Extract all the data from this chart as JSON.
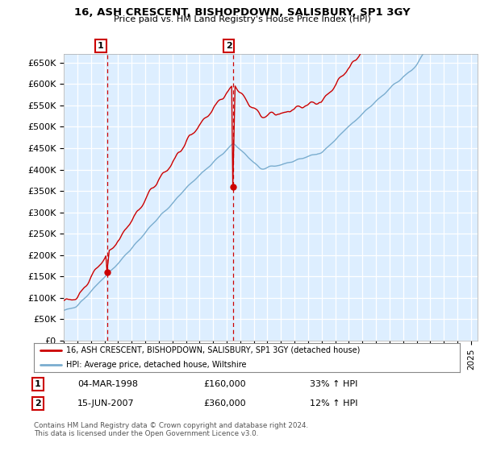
{
  "title": "16, ASH CRESCENT, BISHOPDOWN, SALISBURY, SP1 3GY",
  "subtitle": "Price paid vs. HM Land Registry's House Price Index (HPI)",
  "ylabel_ticks": [
    "£0",
    "£50K",
    "£100K",
    "£150K",
    "£200K",
    "£250K",
    "£300K",
    "£350K",
    "£400K",
    "£450K",
    "£500K",
    "£550K",
    "£600K",
    "£650K"
  ],
  "ytick_values": [
    0,
    50000,
    100000,
    150000,
    200000,
    250000,
    300000,
    350000,
    400000,
    450000,
    500000,
    550000,
    600000,
    650000
  ],
  "xlim_start": 1995.5,
  "xlim_end": 2025.5,
  "ylim_min": 0,
  "ylim_max": 670000,
  "sale1_date": 1998.17,
  "sale1_price": 160000,
  "sale2_date": 2007.46,
  "sale2_price": 360000,
  "legend_line1": "16, ASH CRESCENT, BISHOPDOWN, SALISBURY, SP1 3GY (detached house)",
  "legend_line2": "HPI: Average price, detached house, Wiltshire",
  "table_row1": [
    "1",
    "04-MAR-1998",
    "£160,000",
    "33% ↑ HPI"
  ],
  "table_row2": [
    "2",
    "15-JUN-2007",
    "£360,000",
    "12% ↑ HPI"
  ],
  "footer": "Contains HM Land Registry data © Crown copyright and database right 2024.\nThis data is licensed under the Open Government Licence v3.0.",
  "red_color": "#cc0000",
  "blue_color": "#7aadcf",
  "plot_bg_color": "#ddeeff",
  "grid_color": "#ffffff",
  "bg_color": "#ffffff"
}
